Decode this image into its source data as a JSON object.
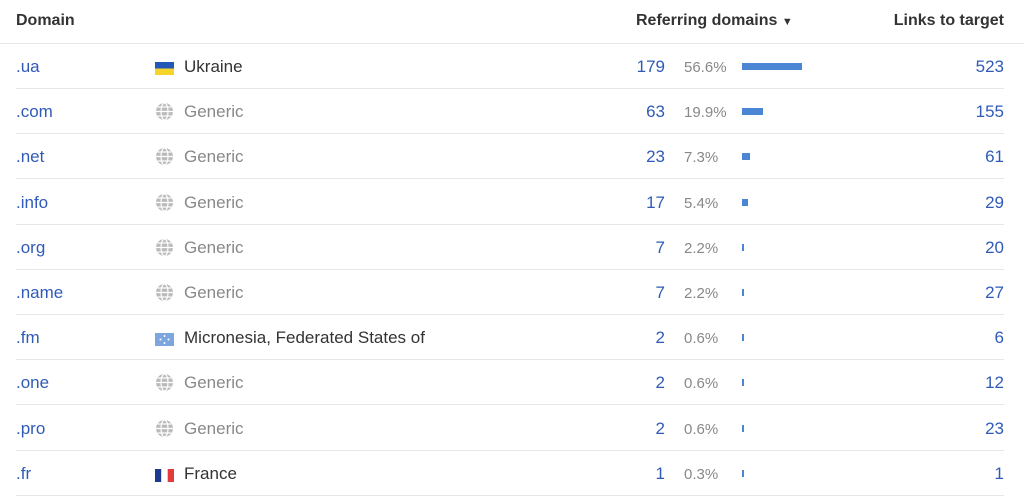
{
  "header": {
    "domain": "Domain",
    "referring_domains": "Referring domains",
    "sort_icon": "triangle-down",
    "links_to_target": "Links to target"
  },
  "colors": {
    "bar": "#4a86d4",
    "link": "#2f5bb7"
  },
  "rows": [
    {
      "domain": ".ua",
      "flag": "ukraine",
      "country": "Ukraine",
      "count": "179",
      "percent": "56.6%",
      "share": 56.6,
      "links": "523"
    },
    {
      "domain": ".com",
      "flag": "globe",
      "country": "Generic",
      "count": "63",
      "percent": "19.9%",
      "share": 19.9,
      "links": "155"
    },
    {
      "domain": ".net",
      "flag": "globe",
      "country": "Generic",
      "count": "23",
      "percent": "7.3%",
      "share": 7.3,
      "links": "61"
    },
    {
      "domain": ".info",
      "flag": "globe",
      "country": "Generic",
      "count": "17",
      "percent": "5.4%",
      "share": 5.4,
      "links": "29"
    },
    {
      "domain": ".org",
      "flag": "globe",
      "country": "Generic",
      "count": "7",
      "percent": "2.2%",
      "share": 2.2,
      "links": "20"
    },
    {
      "domain": ".name",
      "flag": "globe",
      "country": "Generic",
      "count": "7",
      "percent": "2.2%",
      "share": 2.2,
      "links": "27"
    },
    {
      "domain": ".fm",
      "flag": "micronesia",
      "country": "Micronesia, Federated States of",
      "count": "2",
      "percent": "0.6%",
      "share": 0.6,
      "links": "6"
    },
    {
      "domain": ".one",
      "flag": "globe",
      "country": "Generic",
      "count": "2",
      "percent": "0.6%",
      "share": 0.6,
      "links": "12"
    },
    {
      "domain": ".pro",
      "flag": "globe",
      "country": "Generic",
      "count": "2",
      "percent": "0.6%",
      "share": 0.6,
      "links": "23"
    },
    {
      "domain": ".fr",
      "flag": "france",
      "country": "France",
      "count": "1",
      "percent": "0.3%",
      "share": 0.3,
      "links": "1"
    }
  ]
}
